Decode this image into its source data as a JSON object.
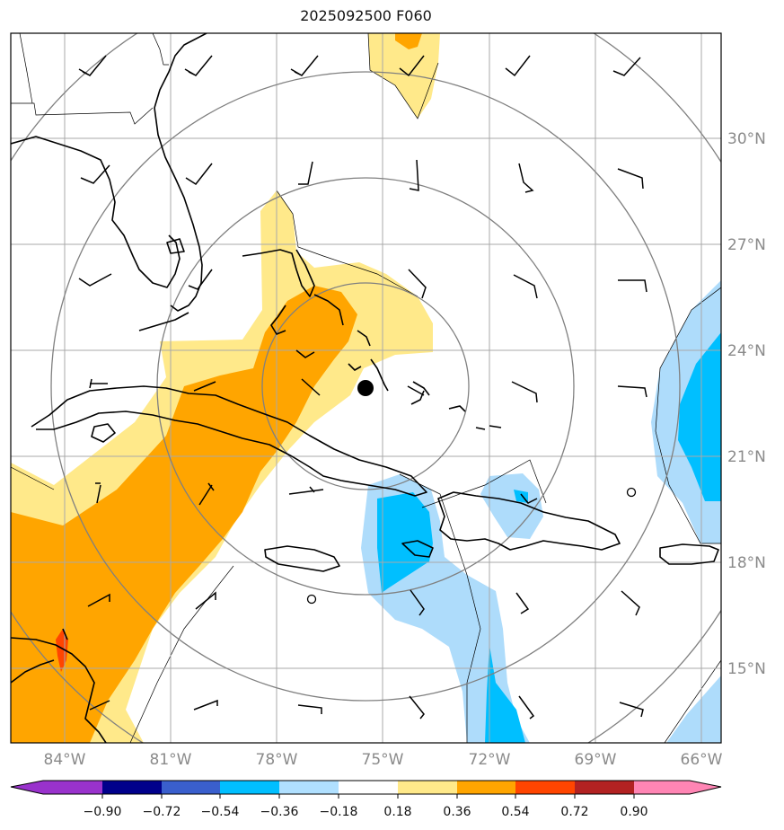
{
  "title": "2025092500 F060",
  "map": {
    "type": "weather-anomaly-map",
    "projection": "PlateCarree",
    "lon_range": [
      -86,
      -65.33
    ],
    "lat_range": [
      13,
      33.03
    ],
    "lon_ticks": [
      "84°W",
      "81°W",
      "78°W",
      "75°W",
      "72°W",
      "69°W",
      "66°W"
    ],
    "lat_ticks": [
      "30°N",
      "27°N",
      "24°N",
      "21°N",
      "18°N",
      "15°N"
    ],
    "storm_center": {
      "lon": -75.5,
      "lat": 22.9,
      "marker": "filled-circle",
      "color": "#000000"
    },
    "range_rings": "concentric gray circles around storm center",
    "wind_barbs": "black wind barbs on a regular grid",
    "colors": {
      "background": "#ffffff",
      "yellow": "#ffe98a",
      "orange": "#ffa500",
      "light_blue": "#aedcfb",
      "blue": "#00bfff",
      "red": "#ff4500",
      "coast": "#000000",
      "grid": "#a9a9a9",
      "rings": "#808080"
    }
  },
  "colorbar": {
    "labels": [
      "−0.90",
      "−0.72",
      "−0.54",
      "−0.36",
      "−0.18",
      "0.18",
      "0.36",
      "0.54",
      "0.72",
      "0.90"
    ],
    "colors": [
      "#9932cc",
      "#00008b",
      "#3a5fcd",
      "#00bfff",
      "#b0e0ff",
      "#ffffff",
      "#ffe98a",
      "#ffa500",
      "#ff4500",
      "#b22222",
      "#ff85b4"
    ],
    "extend": "both"
  }
}
